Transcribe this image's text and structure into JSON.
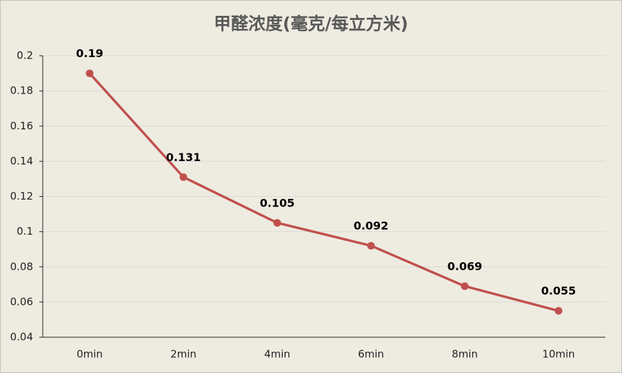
{
  "chart_data": {
    "type": "line",
    "title": "甲醛浓度(毫克/每立方米)",
    "categories": [
      "0min",
      "2min",
      "4min",
      "6min",
      "8min",
      "10min"
    ],
    "values": [
      0.19,
      0.131,
      0.105,
      0.092,
      0.069,
      0.055
    ],
    "color": "#c0504d",
    "ylim": [
      0.04,
      0.2
    ],
    "yticks": [
      0.04,
      0.06,
      0.08,
      0.1,
      0.12,
      0.14,
      0.16,
      0.18,
      0.2
    ],
    "grid": true,
    "data_labels": true
  }
}
